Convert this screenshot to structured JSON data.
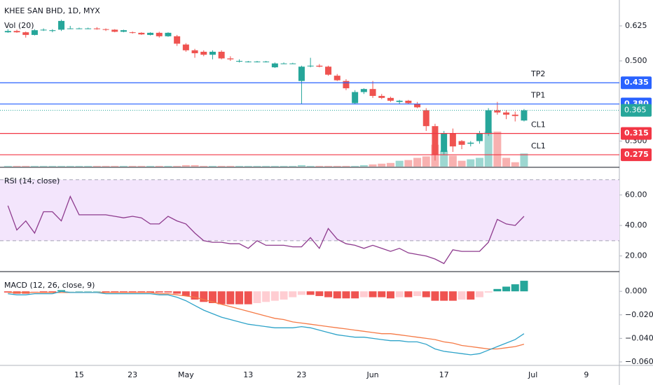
{
  "chart_data": [
    {
      "type": "candlestick",
      "title": "KHEE SAN BHD, 1D, MYX",
      "subtitle": "Vol (20)",
      "categories": [
        null,
        null,
        null,
        null,
        null,
        null,
        null,
        null,
        "15",
        null,
        null,
        null,
        null,
        null,
        "23",
        null,
        null,
        null,
        null,
        null,
        "May",
        null,
        null,
        null,
        null,
        null,
        null,
        "13",
        null,
        null,
        null,
        null,
        null,
        "23",
        null,
        null,
        null,
        null,
        null,
        null,
        null,
        "Jun",
        null,
        null,
        null,
        null,
        null,
        null,
        null,
        "17",
        null,
        null,
        null,
        null,
        null,
        null,
        null,
        null,
        null,
        "Jul",
        null,
        null,
        null,
        null,
        null,
        "9"
      ],
      "open": [
        0.6,
        0.605,
        0.6,
        0.59,
        0.608,
        0.605,
        0.61,
        0.615,
        0.615,
        0.615,
        0.615,
        0.612,
        0.61,
        0.602,
        0.6,
        0.598,
        0.59,
        0.598,
        0.585,
        0.585,
        0.555,
        0.535,
        0.53,
        0.52,
        0.53,
        0.508,
        0.5,
        0.498,
        0.498,
        0.498,
        0.48,
        0.492,
        0.492,
        0.44,
        0.485,
        0.485,
        0.482,
        0.455,
        0.44,
        0.382,
        0.41,
        0.418,
        0.4,
        0.395,
        0.385,
        0.388,
        0.38,
        0.365,
        0.33,
        0.28,
        0.315,
        0.3,
        0.295,
        0.3,
        0.315,
        0.365,
        0.36,
        0.355,
        0.342,
        null,
        null,
        null,
        null,
        null,
        null,
        null
      ],
      "high": [
        0.612,
        0.61,
        0.603,
        0.612,
        0.615,
        0.612,
        0.65,
        0.625,
        0.618,
        0.618,
        0.62,
        0.615,
        0.612,
        0.61,
        0.603,
        0.6,
        0.6,
        0.602,
        0.6,
        0.59,
        0.56,
        0.54,
        0.535,
        0.535,
        0.535,
        0.515,
        0.505,
        0.5,
        0.5,
        0.5,
        0.495,
        0.495,
        0.494,
        0.485,
        0.51,
        0.49,
        0.485,
        0.46,
        0.445,
        0.415,
        0.42,
        0.44,
        0.405,
        0.398,
        0.39,
        0.39,
        0.385,
        0.37,
        0.335,
        0.32,
        0.325,
        0.302,
        0.3,
        0.32,
        0.37,
        0.385,
        0.365,
        0.362,
        0.368,
        null,
        null,
        null,
        null,
        null,
        null,
        null
      ],
      "low": [
        0.598,
        0.598,
        0.58,
        0.588,
        0.605,
        0.6,
        0.605,
        0.612,
        0.612,
        0.612,
        0.61,
        0.605,
        0.6,
        0.6,
        0.595,
        0.59,
        0.588,
        0.58,
        0.583,
        0.55,
        0.53,
        0.51,
        0.515,
        0.505,
        0.505,
        0.5,
        0.495,
        0.495,
        0.495,
        0.495,
        0.478,
        0.49,
        0.49,
        0.38,
        0.48,
        0.48,
        0.455,
        0.44,
        0.415,
        0.38,
        0.405,
        0.395,
        0.392,
        0.385,
        0.38,
        0.38,
        0.37,
        0.32,
        0.265,
        0.275,
        0.28,
        0.285,
        0.29,
        0.295,
        0.31,
        0.355,
        0.345,
        0.34,
        0.34,
        null,
        null,
        null,
        null,
        null,
        null,
        null
      ],
      "close": [
        0.605,
        0.6,
        0.59,
        0.608,
        0.61,
        0.608,
        0.645,
        0.615,
        0.615,
        0.615,
        0.612,
        0.61,
        0.602,
        0.608,
        0.598,
        0.592,
        0.598,
        0.585,
        0.598,
        0.558,
        0.535,
        0.525,
        0.52,
        0.53,
        0.508,
        0.505,
        0.5,
        0.498,
        0.498,
        0.498,
        0.492,
        0.492,
        0.492,
        0.482,
        0.485,
        0.482,
        0.458,
        0.442,
        0.42,
        0.41,
        0.418,
        0.4,
        0.395,
        0.388,
        0.388,
        0.382,
        0.372,
        0.33,
        0.275,
        0.315,
        0.29,
        0.293,
        0.297,
        0.315,
        0.365,
        0.36,
        0.355,
        0.352,
        0.365,
        null,
        null,
        null,
        null,
        null,
        null,
        null
      ],
      "volume": [
        1,
        1,
        1,
        1,
        1,
        1,
        1,
        1,
        1,
        1,
        1,
        1,
        1,
        1,
        1,
        1,
        1,
        1,
        1,
        1,
        2,
        2,
        1,
        1,
        1,
        1,
        1,
        1,
        1,
        1,
        1,
        1,
        1,
        2,
        1,
        1,
        1,
        1,
        1,
        1,
        2,
        3,
        4,
        5,
        8,
        9,
        12,
        14,
        30,
        22,
        15,
        8,
        10,
        12,
        48,
        48,
        12,
        6,
        18,
        null,
        null,
        null,
        null,
        null,
        null,
        null
      ],
      "up_color": "#26a69a",
      "down_color": "#ef5350",
      "ylim": [
        0.255,
        0.737
      ],
      "log_scale": true,
      "yticks": [
        {
          "value": 0.3,
          "label": "0.300"
        },
        {
          "value": 0.5,
          "label": "0.500"
        },
        {
          "value": 0.625,
          "label": "0.625"
        }
      ],
      "levels": [
        {
          "name": "TP2",
          "value": 0.435,
          "label": "0.435",
          "color": "#2962ff"
        },
        {
          "name": "TP1",
          "value": 0.38,
          "label": "0.380",
          "color": "#2962ff"
        },
        {
          "name": "CL1",
          "value": 0.315,
          "label": "0.315",
          "color": "#f23645"
        },
        {
          "name": "CL1",
          "value": 0.275,
          "label": "0.275",
          "color": "#f23645"
        }
      ],
      "last_price": {
        "value": 0.365,
        "label": "0.365",
        "color": "#26a69a"
      }
    },
    {
      "type": "line",
      "title": "RSI (14, close)",
      "color": "#8e3b8e",
      "band": [
        30,
        70
      ],
      "band_color": "#f3e5fc",
      "values": [
        53,
        37,
        43,
        35,
        49,
        49,
        43,
        59,
        47,
        47,
        47,
        47,
        46,
        45,
        46,
        45,
        41,
        41,
        46,
        43,
        41,
        35,
        30,
        29,
        29,
        28,
        28,
        25,
        30,
        27,
        27,
        27,
        26,
        26,
        32,
        25,
        38,
        31,
        28,
        27,
        25,
        27,
        25,
        23,
        25,
        22,
        21,
        20,
        18,
        15,
        24,
        23,
        23,
        23,
        29,
        44,
        41,
        40,
        46
      ],
      "ylim": [
        10.2,
        77.7
      ],
      "yticks": [
        {
          "value": 20,
          "label": "20.00"
        },
        {
          "value": 40,
          "label": "40.00"
        },
        {
          "value": 60,
          "label": "60.00"
        }
      ]
    },
    {
      "type": "macd",
      "title": "MACD (12, 26, close, 9)",
      "macd_color": "#2ea3c9",
      "signal_color": "#f57a46",
      "macd": [
        -0.002,
        -0.003,
        -0.003,
        -0.002,
        -0.002,
        -0.002,
        0.0,
        -0.001,
        -0.001,
        -0.001,
        -0.001,
        -0.002,
        -0.002,
        -0.002,
        -0.002,
        -0.002,
        -0.002,
        -0.003,
        -0.003,
        -0.005,
        -0.008,
        -0.012,
        -0.016,
        -0.019,
        -0.022,
        -0.024,
        -0.026,
        -0.028,
        -0.029,
        -0.03,
        -0.031,
        -0.031,
        -0.031,
        -0.03,
        -0.031,
        -0.033,
        -0.035,
        -0.037,
        -0.038,
        -0.039,
        -0.039,
        -0.04,
        -0.041,
        -0.042,
        -0.042,
        -0.043,
        -0.043,
        -0.045,
        -0.049,
        -0.051,
        -0.052,
        -0.053,
        -0.054,
        -0.053,
        -0.05,
        -0.047,
        -0.044,
        -0.041,
        -0.036
      ],
      "signal": [
        -0.001,
        -0.001,
        -0.001,
        -0.001,
        -0.001,
        -0.001,
        -0.001,
        -0.001,
        -0.001,
        -0.001,
        -0.001,
        -0.001,
        -0.001,
        -0.001,
        -0.001,
        -0.001,
        -0.001,
        -0.002,
        -0.002,
        -0.003,
        -0.004,
        -0.005,
        -0.007,
        -0.009,
        -0.011,
        -0.013,
        -0.015,
        -0.017,
        -0.019,
        -0.021,
        -0.023,
        -0.024,
        -0.026,
        -0.027,
        -0.028,
        -0.029,
        -0.03,
        -0.031,
        -0.032,
        -0.033,
        -0.034,
        -0.035,
        -0.036,
        -0.036,
        -0.037,
        -0.038,
        -0.039,
        -0.04,
        -0.041,
        -0.043,
        -0.044,
        -0.046,
        -0.047,
        -0.048,
        -0.049,
        -0.049,
        -0.048,
        -0.047,
        -0.045
      ],
      "histogram": [
        -0.001,
        -0.002,
        -0.002,
        -0.001,
        -0.001,
        -0.001,
        0.001,
        0.0,
        0.0,
        0.0,
        0.0,
        -0.001,
        -0.001,
        -0.001,
        -0.001,
        -0.001,
        -0.001,
        -0.001,
        -0.001,
        -0.002,
        -0.004,
        -0.007,
        -0.009,
        -0.01,
        -0.011,
        -0.011,
        -0.011,
        -0.011,
        -0.01,
        -0.009,
        -0.008,
        -0.007,
        -0.005,
        -0.003,
        -0.003,
        -0.004,
        -0.005,
        -0.006,
        -0.006,
        -0.006,
        -0.005,
        -0.005,
        -0.005,
        -0.006,
        -0.005,
        -0.005,
        -0.004,
        -0.005,
        -0.008,
        -0.008,
        -0.008,
        -0.007,
        -0.007,
        -0.005,
        -0.001,
        0.002,
        0.004,
        0.006,
        0.009
      ],
      "ylim": [
        -0.0624,
        0.0156
      ],
      "yticks": [
        {
          "value": 0,
          "label": "0.000"
        },
        {
          "value": -0.02,
          "label": "−0.020"
        },
        {
          "value": -0.04,
          "label": "−0.040"
        },
        {
          "value": -0.06,
          "label": "−0.060"
        }
      ]
    }
  ]
}
